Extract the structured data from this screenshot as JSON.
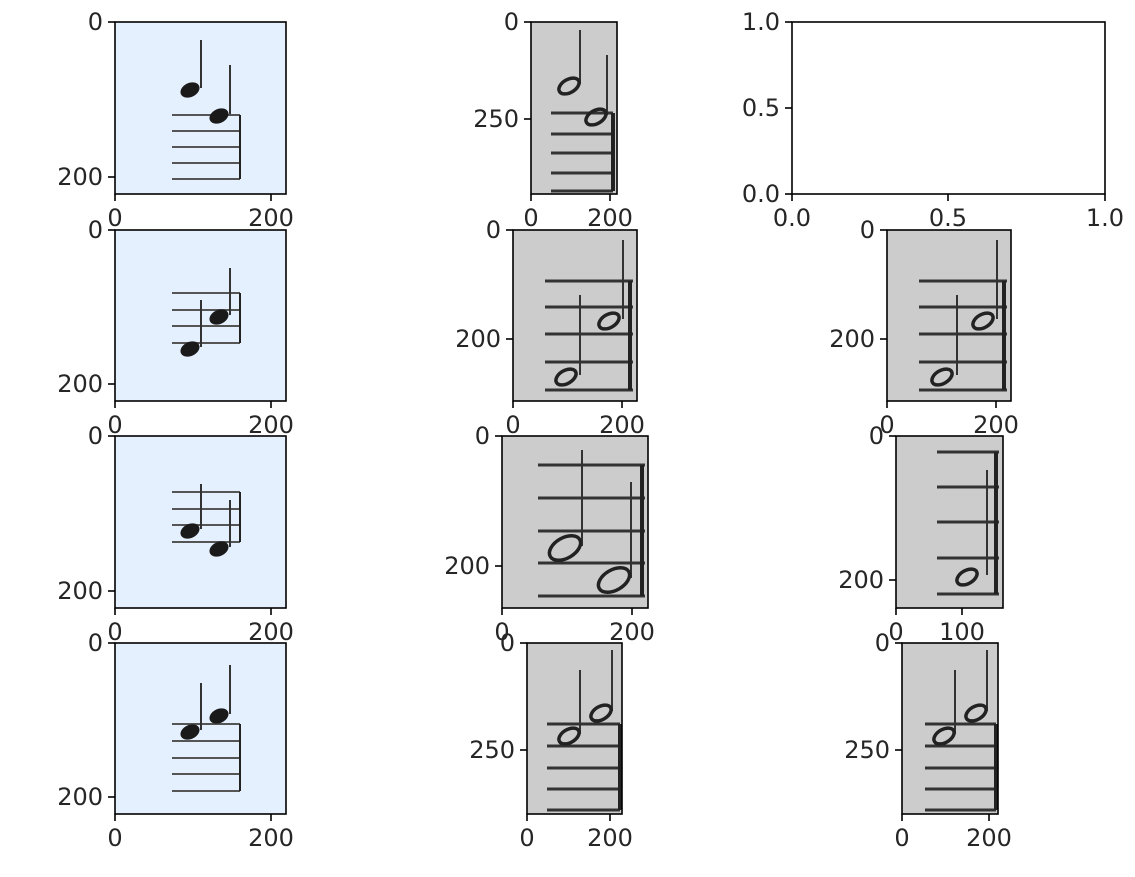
{
  "chart_data": {
    "type": "image_grid",
    "grid": {
      "rows": 4,
      "cols": 3
    },
    "panels": [
      {
        "row": 0,
        "col": 0,
        "kind": "image",
        "style": "solid",
        "bg": "#e5f0ff",
        "staff_lines": 5,
        "notes": 2,
        "interval": "descending",
        "xticks": [
          "0",
          "200"
        ],
        "yticks": [
          "0",
          "200"
        ]
      },
      {
        "row": 0,
        "col": 1,
        "kind": "image",
        "style": "hollow",
        "bg": "#cccccc",
        "staff_lines": 5,
        "notes": 2,
        "interval": "descending",
        "xticks": [
          "0",
          "200"
        ],
        "yticks": [
          "0",
          "250"
        ]
      },
      {
        "row": 0,
        "col": 2,
        "kind": "empty_axes",
        "xlim": [
          0.0,
          1.0
        ],
        "ylim": [
          0.0,
          1.0
        ],
        "xticks": [
          "0.0",
          "0.5",
          "1.0"
        ],
        "yticks": [
          "0.0",
          "0.5",
          "1.0"
        ]
      },
      {
        "row": 1,
        "col": 0,
        "kind": "image",
        "style": "solid",
        "bg": "#e5f0ff",
        "staff_lines": 4,
        "notes": 2,
        "interval": "ascending",
        "xticks": [
          "0",
          "200"
        ],
        "yticks": [
          "0",
          "200"
        ]
      },
      {
        "row": 1,
        "col": 1,
        "kind": "image",
        "style": "hollow",
        "bg": "#cccccc",
        "staff_lines": 5,
        "notes": 2,
        "interval": "ascending",
        "xticks": [
          "0",
          "200"
        ],
        "yticks": [
          "0",
          "200"
        ]
      },
      {
        "row": 1,
        "col": 2,
        "kind": "image",
        "style": "hollow",
        "bg": "#cccccc",
        "staff_lines": 5,
        "notes": 2,
        "interval": "ascending",
        "xticks": [
          "0",
          "200"
        ],
        "yticks": [
          "0",
          "200"
        ]
      },
      {
        "row": 2,
        "col": 0,
        "kind": "image",
        "style": "solid",
        "bg": "#e5f0ff",
        "staff_lines": 4,
        "notes": 2,
        "interval": "descending",
        "xticks": [
          "0",
          "200"
        ],
        "yticks": [
          "0",
          "200"
        ]
      },
      {
        "row": 2,
        "col": 1,
        "kind": "image",
        "style": "hollow",
        "bg": "#cccccc",
        "staff_lines": 5,
        "notes": 2,
        "interval": "descending",
        "xticks": [
          "0",
          "200"
        ],
        "yticks": [
          "0",
          "200"
        ]
      },
      {
        "row": 2,
        "col": 2,
        "kind": "image",
        "style": "hollow",
        "bg": "#cccccc",
        "staff_lines": 5,
        "notes": 1,
        "interval": "single",
        "xticks": [
          "0",
          "100"
        ],
        "yticks": [
          "0",
          "200"
        ]
      },
      {
        "row": 3,
        "col": 0,
        "kind": "image",
        "style": "solid",
        "bg": "#e5f0ff",
        "staff_lines": 5,
        "notes": 2,
        "interval": "ascending",
        "xticks": [
          "0",
          "200"
        ],
        "yticks": [
          "0",
          "200"
        ]
      },
      {
        "row": 3,
        "col": 1,
        "kind": "image",
        "style": "hollow",
        "bg": "#cccccc",
        "staff_lines": 5,
        "notes": 2,
        "interval": "ascending",
        "xticks": [
          "0",
          "200"
        ],
        "yticks": [
          "0",
          "250"
        ]
      },
      {
        "row": 3,
        "col": 2,
        "kind": "image",
        "style": "hollow",
        "bg": "#cccccc",
        "staff_lines": 5,
        "notes": 2,
        "interval": "ascending",
        "xticks": [
          "0",
          "200"
        ],
        "yticks": [
          "0",
          "250"
        ]
      }
    ]
  }
}
